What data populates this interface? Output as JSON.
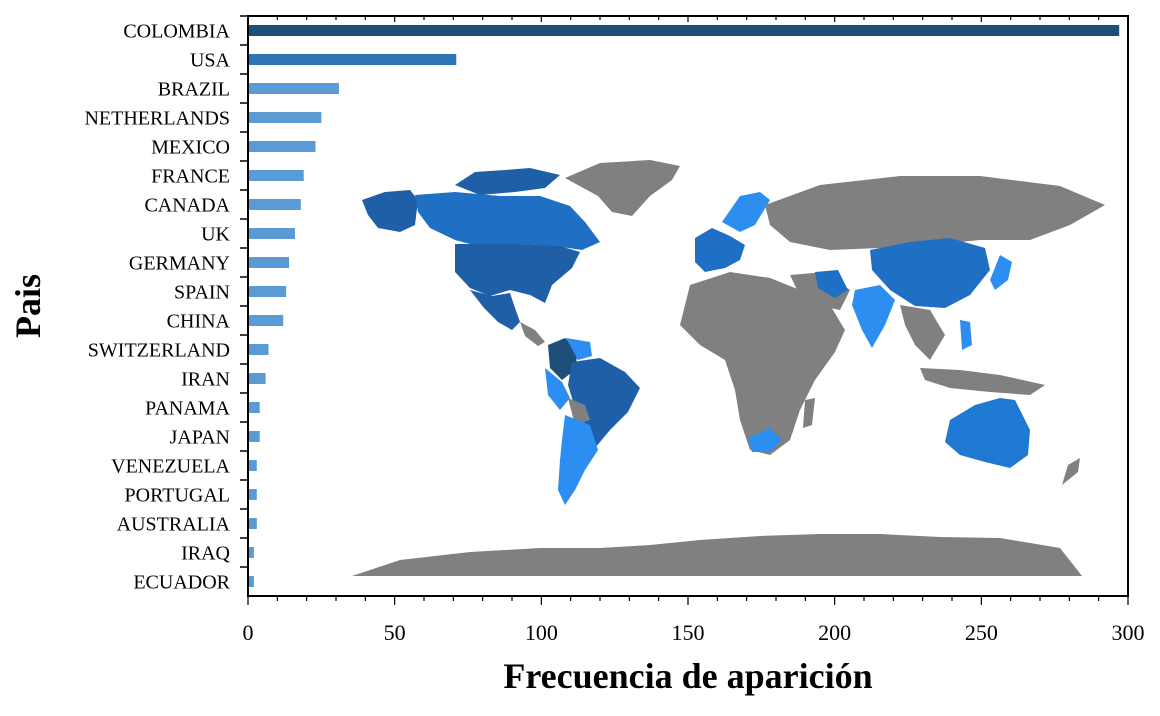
{
  "chart_data": {
    "type": "bar",
    "orientation": "horizontal",
    "title": "",
    "xlabel": "Frecuencia de aparición",
    "ylabel": "Pais",
    "xlim": [
      0,
      300
    ],
    "xticks": [
      0,
      50,
      100,
      150,
      200,
      250,
      300
    ],
    "grid": false,
    "legend": "none",
    "categories": [
      "COLOMBIA",
      "USA",
      "BRAZIL",
      "NETHERLANDS",
      "MEXICO",
      "FRANCE",
      "CANADA",
      "UK",
      "GERMANY",
      "SPAIN",
      "CHINA",
      "SWITZERLAND",
      "IRAN",
      "PANAMA",
      "JAPAN",
      "VENEZUELA",
      "PORTUGAL",
      "AUSTRALIA",
      "IRAQ",
      "ECUADOR"
    ],
    "values": [
      297,
      71,
      31,
      25,
      23,
      19,
      18,
      16,
      14,
      13,
      12,
      7,
      6,
      4,
      4,
      3,
      3,
      3,
      2,
      2
    ],
    "colors": {
      "top": "#1f4e79",
      "second": "#2e75b6",
      "rest": "#5b9bd5",
      "map_land": "#808080",
      "map_high": "#1f5fa8",
      "map_mid": "#1f78d1",
      "map_low": "#2b8ef0"
    },
    "background_image": "world map with countries colored by frequency"
  }
}
